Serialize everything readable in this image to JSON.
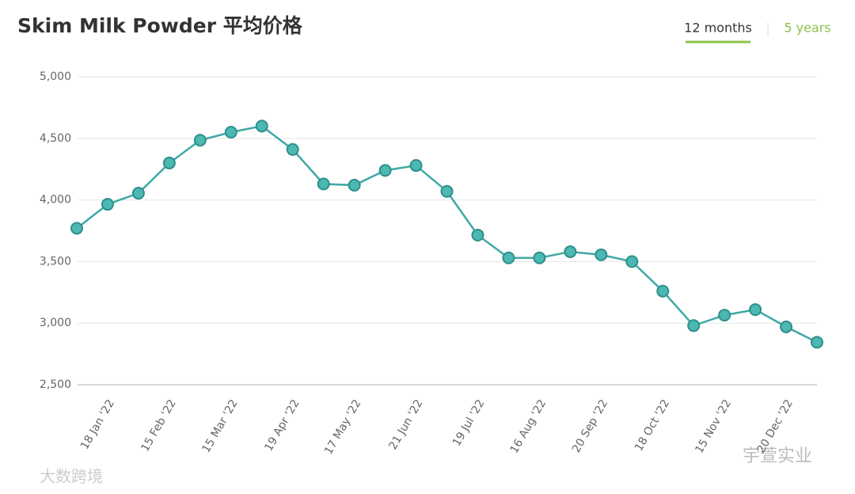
{
  "chart_data": {
    "type": "line",
    "title": "Skim Milk Powder 平均价格",
    "categories": [
      null,
      "18 Jan '22",
      null,
      "15 Feb '22",
      null,
      "15 Mar '22",
      null,
      "19 Apr '22",
      null,
      "17 May '22",
      null,
      "21 Jun '22",
      null,
      "19 Jul '22",
      null,
      "16 Aug '22",
      null,
      "20 Sep '22",
      null,
      "18 Oct '22",
      null,
      "15 Nov '22",
      null,
      "20 Dec '22",
      null
    ],
    "series": [
      {
        "name": "Skim Milk Powder",
        "color": "#3fa9a5",
        "values": [
          3770,
          3965,
          4055,
          4300,
          4485,
          4550,
          4600,
          4410,
          4130,
          4120,
          4240,
          4280,
          4070,
          3715,
          3530,
          3530,
          3580,
          3555,
          3500,
          3260,
          2980,
          3065,
          3110,
          2970,
          2845
        ]
      }
    ],
    "ylim": [
      2500,
      5000
    ],
    "yticks": [
      {
        "value": 2500,
        "label": "2,500"
      },
      {
        "value": 3000,
        "label": "3,000"
      },
      {
        "value": 3500,
        "label": "3,500"
      },
      {
        "value": 4000,
        "label": "4,000"
      },
      {
        "value": 4500,
        "label": "4,500"
      },
      {
        "value": 5000,
        "label": "5,000"
      }
    ],
    "grid": true
  },
  "tabs": [
    "12 months",
    "5 years"
  ],
  "watermarks": [
    "大数跨境",
    "宇萱实业"
  ]
}
